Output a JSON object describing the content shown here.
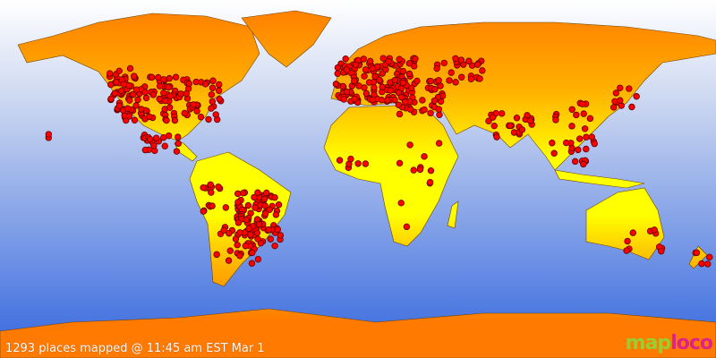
{
  "map": {
    "caption": "1293 places mapped @ 11:45 am EST Mar 1",
    "places_count": 1293,
    "logo": {
      "part1": "map",
      "part2": "loco"
    },
    "colors": {
      "ocean_top": "#ffffff",
      "ocean_bottom": "#3b6ed8",
      "land_north": "#ff7f00",
      "land_equator": "#ffff00",
      "marker": "#ff0000",
      "marker_outline": "#600000"
    }
  }
}
